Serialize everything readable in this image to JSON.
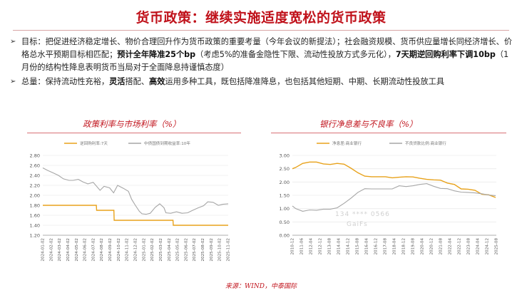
{
  "title": "货币政策：继续实施适度宽松的货币政策",
  "bullets": [
    {
      "arrow": "➢",
      "p1": "目标：把促进经济稳定增长、物价合理回升作为货币政策的重要考量（今年会议的新提法）；社会融资规模、货币供应量增长同经济增长、价格总水平预期目标相匹配；",
      "b1": "预计全年降准25个bp",
      "p2": "（考虑5%的准备金隐性下限、流动性投放方式多元化），",
      "b2": "7天期逆回购利率下调10bp",
      "p3": "（1月份的结构性降息表明货币当局对于全面降息持谨慎态度）"
    },
    {
      "arrow": "➢",
      "p1": "总量：保持流动性充裕，",
      "b1": "灵活",
      "p2": "搭配、",
      "b2": "高效",
      "p3": "运用多种工具，既包括降准降息，也包括其他短期、中期、长期流动性投放工具"
    }
  ],
  "chart_data": [
    {
      "type": "line",
      "title": "政策利率与市场利率（%）",
      "series": [
        {
          "name": "逆回购利率:7天",
          "color": "#e8a21b",
          "x": [
            "2024-01-02",
            "2024-07-22",
            "2024-07-23",
            "2024-09-26",
            "2024-09-27",
            "2025-05-07",
            "2025-05-08",
            "2025-12-01"
          ],
          "values": [
            1.8,
            1.8,
            1.7,
            1.7,
            1.5,
            1.5,
            1.4,
            1.4
          ]
        },
        {
          "name": "中债国债到期收益率:10年",
          "color": "#a6a6a6",
          "x": [
            "2024-01-02",
            "2024-01-20",
            "2024-02-10",
            "2024-03-01",
            "2024-03-20",
            "2024-04-10",
            "2024-04-25",
            "2024-05-15",
            "2024-06-01",
            "2024-06-20",
            "2024-07-10",
            "2024-08-05",
            "2024-08-20",
            "2024-09-10",
            "2024-09-25",
            "2024-10-10",
            "2024-11-01",
            "2024-11-20",
            "2024-12-02",
            "2024-12-16",
            "2024-12-31",
            "2025-01-10",
            "2025-01-25",
            "2025-02-10",
            "2025-03-01",
            "2025-03-18",
            "2025-04-03",
            "2025-04-10",
            "2025-04-28",
            "2025-05-20",
            "2025-06-10",
            "2025-07-01",
            "2025-07-20",
            "2025-08-10",
            "2025-08-30",
            "2025-09-15",
            "2025-10-05",
            "2025-10-25",
            "2025-11-10",
            "2025-12-01"
          ],
          "values": [
            2.55,
            2.5,
            2.45,
            2.4,
            2.33,
            2.3,
            2.3,
            2.32,
            2.27,
            2.23,
            2.26,
            2.1,
            2.18,
            2.15,
            2.05,
            2.2,
            2.14,
            2.08,
            1.92,
            1.8,
            1.68,
            1.63,
            1.62,
            1.64,
            1.76,
            1.83,
            1.75,
            1.65,
            1.64,
            1.67,
            1.64,
            1.65,
            1.7,
            1.75,
            1.79,
            1.87,
            1.86,
            1.8,
            1.82,
            1.83
          ]
        }
      ],
      "ylim": [
        1.2,
        2.8
      ],
      "yticks": [
        "1.20",
        "1.40",
        "1.60",
        "1.80",
        "2.00",
        "2.20",
        "2.40",
        "2.60",
        "2.80"
      ],
      "xticks": [
        "2024-01-02",
        "2024-02-02",
        "2024-03-02",
        "2024-04-02",
        "2024-05-02",
        "2024-06-02",
        "2024-07-02",
        "2024-08-02",
        "2024-09-02",
        "2024-10-02",
        "2024-11-02",
        "2024-12-02",
        "2025-01-02",
        "2025-02-02",
        "2025-03-02",
        "2025-04-02",
        "2025-05-02",
        "2025-06-02",
        "2025-07-02",
        "2025-08-02",
        "2025-09-02",
        "2025-10-02",
        "2025-11-02"
      ]
    },
    {
      "type": "line",
      "title": "银行净息差与不良率（%）",
      "series": [
        {
          "name": "净息差:商业银行",
          "color": "#e8a21b",
          "x": [
            2010.75,
            2011.0,
            2011.5,
            2012.0,
            2012.5,
            2013.0,
            2013.5,
            2014.0,
            2014.5,
            2015.0,
            2015.5,
            2016.0,
            2016.5,
            2017.0,
            2017.5,
            2018.0,
            2018.5,
            2019.0,
            2019.5,
            2020.0,
            2020.5,
            2021.0,
            2021.5,
            2022.0,
            2022.5,
            2023.0,
            2023.5,
            2024.0,
            2024.5,
            2025.0,
            2025.5
          ],
          "values": [
            2.5,
            2.55,
            2.7,
            2.75,
            2.75,
            2.68,
            2.66,
            2.7,
            2.67,
            2.52,
            2.35,
            2.22,
            2.2,
            2.2,
            2.2,
            2.16,
            2.18,
            2.2,
            2.19,
            2.14,
            2.1,
            2.08,
            2.07,
            1.96,
            1.91,
            1.74,
            1.73,
            1.69,
            1.54,
            1.52,
            1.42
          ]
        },
        {
          "name": "不良贷款比例:商业银行",
          "color": "#a6a6a6",
          "x": [
            2010.75,
            2011.0,
            2011.5,
            2012.0,
            2012.5,
            2013.0,
            2013.5,
            2014.0,
            2014.5,
            2015.0,
            2015.5,
            2016.0,
            2016.5,
            2017.0,
            2017.5,
            2018.0,
            2018.5,
            2019.0,
            2019.5,
            2020.0,
            2020.5,
            2021.0,
            2021.5,
            2022.0,
            2022.5,
            2023.0,
            2023.5,
            2024.0,
            2024.5,
            2025.0,
            2025.5
          ],
          "values": [
            1.1,
            1.0,
            0.9,
            0.95,
            0.94,
            0.98,
            0.98,
            1.03,
            1.2,
            1.39,
            1.61,
            1.75,
            1.74,
            1.74,
            1.74,
            1.74,
            1.86,
            1.83,
            1.86,
            1.91,
            1.94,
            1.84,
            1.76,
            1.75,
            1.67,
            1.62,
            1.61,
            1.59,
            1.56,
            1.51,
            1.49
          ]
        }
      ],
      "ylim": [
        0.0,
        3.0
      ],
      "yticks": [
        "0.00",
        "0.50",
        "1.00",
        "1.50",
        "2.00",
        "2.50",
        "3.00"
      ],
      "xticks": [
        "2010-12",
        "2011-06",
        "2012-04",
        "2012-12",
        "2013-08",
        "2014-04",
        "2014-12",
        "2015-08",
        "2016-04",
        "2016-12",
        "2017-08",
        "2018-04",
        "2018-12",
        "2019-08",
        "2020-04",
        "2020-12",
        "2021-08",
        "2022-04",
        "2022-12",
        "2023-08",
        "2024-04",
        "2024-12",
        "2025-08"
      ]
    }
  ],
  "footer": "来源：WIND，中泰国际"
}
